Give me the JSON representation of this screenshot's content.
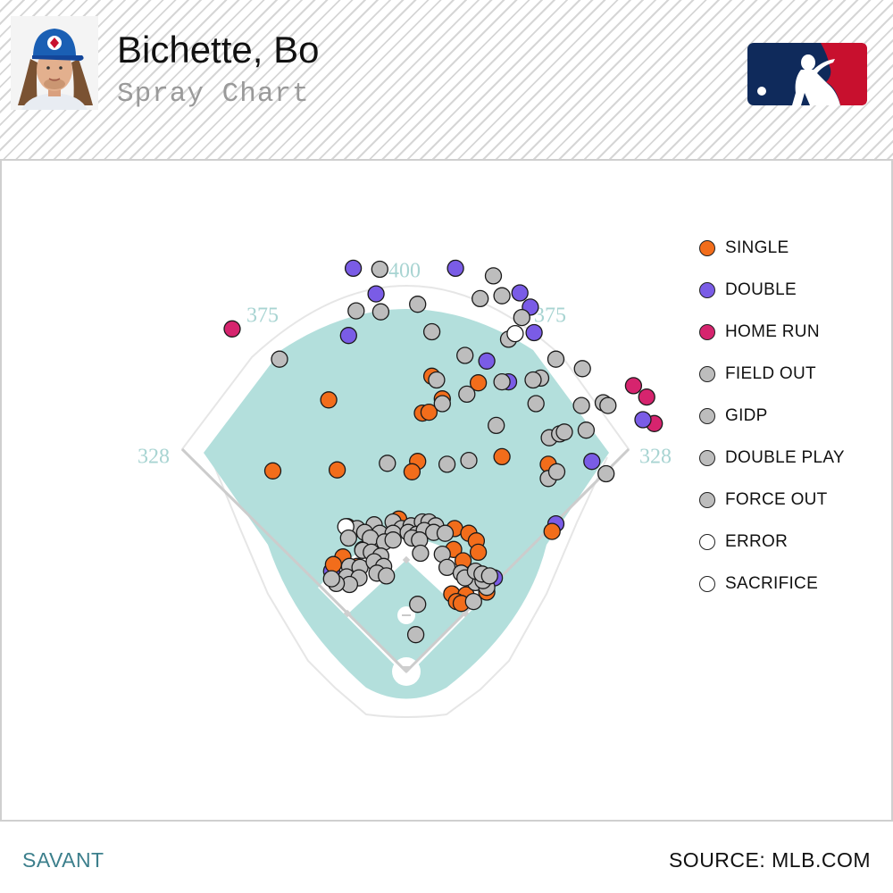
{
  "header": {
    "player_name": "Bichette, Bo",
    "subtitle": "Spray Chart"
  },
  "footer": {
    "brand": "SAVANT",
    "source": "SOURCE: MLB.COM"
  },
  "colors": {
    "field": "#b3dfdc",
    "single": "#f26d1b",
    "double": "#7a5ce6",
    "home_run": "#d6246e",
    "out": "#bdbdbd",
    "error": "#ffffff",
    "distance_label": "#a8d4d2",
    "mlb_blue": "#0f2a5b",
    "mlb_red": "#c8102e"
  },
  "chart_data": {
    "type": "scatter",
    "title": "Spray Chart",
    "field_distances": [
      {
        "label": "328",
        "side": "left-line"
      },
      {
        "label": "375",
        "side": "left-center"
      },
      {
        "label": "400",
        "side": "center"
      },
      {
        "label": "375",
        "side": "right-center"
      },
      {
        "label": "328",
        "side": "right-line"
      }
    ],
    "legend": [
      {
        "key": "single",
        "label": "SINGLE",
        "color": "#f26d1b"
      },
      {
        "key": "double",
        "label": "DOUBLE",
        "color": "#7a5ce6"
      },
      {
        "key": "home_run",
        "label": "HOME RUN",
        "color": "#d6246e"
      },
      {
        "key": "field_out",
        "label": "FIELD OUT",
        "color": "#bdbdbd"
      },
      {
        "key": "gidp",
        "label": "GIDP",
        "color": "#bdbdbd"
      },
      {
        "key": "double_play",
        "label": "DOUBLE PLAY",
        "color": "#bdbdbd"
      },
      {
        "key": "force_out",
        "label": "FORCE OUT",
        "color": "#bdbdbd"
      },
      {
        "key": "error",
        "label": "ERROR",
        "color": "#ffffff"
      },
      {
        "key": "sacrifice",
        "label": "SACRIFICE",
        "color": "#ffffff"
      }
    ],
    "coordinate_system": "hit coordinates: x = horizontal spray (home plate at 0, left field negative), y = feet toward center field",
    "hits": [
      {
        "x": -184,
        "y": 362,
        "type": "home_run"
      },
      {
        "x": 240,
        "y": 302,
        "type": "home_run"
      },
      {
        "x": 254,
        "y": 290,
        "type": "home_run"
      },
      {
        "x": 262,
        "y": 262,
        "type": "home_run"
      },
      {
        "x": -56,
        "y": 426,
        "type": "double"
      },
      {
        "x": 52,
        "y": 426,
        "type": "double"
      },
      {
        "x": -32,
        "y": 399,
        "type": "double"
      },
      {
        "x": 120,
        "y": 400,
        "type": "double"
      },
      {
        "x": 131,
        "y": 385,
        "type": "double"
      },
      {
        "x": -61,
        "y": 355,
        "type": "double"
      },
      {
        "x": 135,
        "y": 358,
        "type": "double"
      },
      {
        "x": 85,
        "y": 328,
        "type": "double"
      },
      {
        "x": 108,
        "y": 306,
        "type": "double"
      },
      {
        "x": 250,
        "y": 266,
        "type": "double"
      },
      {
        "x": 196,
        "y": 222,
        "type": "double"
      },
      {
        "x": 158,
        "y": 156,
        "type": "double"
      },
      {
        "x": -79,
        "y": 106,
        "type": "double"
      },
      {
        "x": 93,
        "y": 99,
        "type": "double"
      },
      {
        "x": 27,
        "y": 312,
        "type": "single"
      },
      {
        "x": 76,
        "y": 305,
        "type": "single"
      },
      {
        "x": -82,
        "y": 287,
        "type": "single"
      },
      {
        "x": 38,
        "y": 288,
        "type": "single"
      },
      {
        "x": 17,
        "y": 273,
        "type": "single"
      },
      {
        "x": 24,
        "y": 274,
        "type": "single"
      },
      {
        "x": -141,
        "y": 212,
        "type": "single"
      },
      {
        "x": -73,
        "y": 213,
        "type": "single"
      },
      {
        "x": 12,
        "y": 222,
        "type": "single"
      },
      {
        "x": 6,
        "y": 211,
        "type": "single"
      },
      {
        "x": 101,
        "y": 227,
        "type": "single"
      },
      {
        "x": 150,
        "y": 219,
        "type": "single"
      },
      {
        "x": 154,
        "y": 148,
        "type": "single"
      },
      {
        "x": -62,
        "y": 153,
        "type": "single"
      },
      {
        "x": -8,
        "y": 161,
        "type": "single"
      },
      {
        "x": 51,
        "y": 151,
        "type": "single"
      },
      {
        "x": 66,
        "y": 146,
        "type": "single"
      },
      {
        "x": 74,
        "y": 138,
        "type": "single"
      },
      {
        "x": 76,
        "y": 126,
        "type": "single"
      },
      {
        "x": -67,
        "y": 121,
        "type": "single"
      },
      {
        "x": -46,
        "y": 129,
        "type": "single"
      },
      {
        "x": -52,
        "y": 111,
        "type": "single"
      },
      {
        "x": -77,
        "y": 113,
        "type": "single"
      },
      {
        "x": 50,
        "y": 129,
        "type": "single"
      },
      {
        "x": 60,
        "y": 117,
        "type": "single"
      },
      {
        "x": 48,
        "y": 82,
        "type": "single"
      },
      {
        "x": 63,
        "y": 81,
        "type": "single"
      },
      {
        "x": 85,
        "y": 84,
        "type": "single"
      },
      {
        "x": 53,
        "y": 74,
        "type": "single"
      },
      {
        "x": 58,
        "y": 72,
        "type": "single"
      },
      {
        "x": -28,
        "y": 425,
        "type": "field_out"
      },
      {
        "x": 92,
        "y": 418,
        "type": "field_out"
      },
      {
        "x": 101,
        "y": 397,
        "type": "field_out"
      },
      {
        "x": 78,
        "y": 394,
        "type": "field_out"
      },
      {
        "x": 12,
        "y": 388,
        "type": "field_out"
      },
      {
        "x": -53,
        "y": 381,
        "type": "field_out"
      },
      {
        "x": -27,
        "y": 380,
        "type": "field_out"
      },
      {
        "x": 122,
        "y": 374,
        "type": "field_out"
      },
      {
        "x": 27,
        "y": 359,
        "type": "field_out"
      },
      {
        "x": 108,
        "y": 351,
        "type": "field_out"
      },
      {
        "x": -134,
        "y": 330,
        "type": "field_out"
      },
      {
        "x": 62,
        "y": 334,
        "type": "field_out"
      },
      {
        "x": 158,
        "y": 330,
        "type": "field_out"
      },
      {
        "x": 186,
        "y": 320,
        "type": "field_out"
      },
      {
        "x": 32,
        "y": 308,
        "type": "field_out"
      },
      {
        "x": 142,
        "y": 310,
        "type": "field_out"
      },
      {
        "x": 134,
        "y": 308,
        "type": "field_out"
      },
      {
        "x": 101,
        "y": 306,
        "type": "field_out"
      },
      {
        "x": 64,
        "y": 293,
        "type": "field_out"
      },
      {
        "x": 38,
        "y": 283,
        "type": "field_out"
      },
      {
        "x": 137,
        "y": 283,
        "type": "field_out"
      },
      {
        "x": 185,
        "y": 281,
        "type": "field_out"
      },
      {
        "x": 208,
        "y": 284,
        "type": "field_out"
      },
      {
        "x": 213,
        "y": 281,
        "type": "field_out"
      },
      {
        "x": 95,
        "y": 260,
        "type": "field_out"
      },
      {
        "x": 151,
        "y": 247,
        "type": "field_out"
      },
      {
        "x": 162,
        "y": 251,
        "type": "field_out"
      },
      {
        "x": 167,
        "y": 253,
        "type": "field_out"
      },
      {
        "x": 190,
        "y": 255,
        "type": "field_out"
      },
      {
        "x": -20,
        "y": 220,
        "type": "field_out"
      },
      {
        "x": 43,
        "y": 219,
        "type": "field_out"
      },
      {
        "x": 66,
        "y": 223,
        "type": "field_out"
      },
      {
        "x": 150,
        "y": 204,
        "type": "field_out"
      },
      {
        "x": 159,
        "y": 211,
        "type": "field_out"
      },
      {
        "x": 211,
        "y": 209,
        "type": "field_out"
      },
      {
        "x": -52,
        "y": 151,
        "type": "field_out"
      },
      {
        "x": -34,
        "y": 155,
        "type": "field_out"
      },
      {
        "x": -14,
        "y": 158,
        "type": "field_out"
      },
      {
        "x": -5,
        "y": 151,
        "type": "field_out"
      },
      {
        "x": 5,
        "y": 154,
        "type": "field_out"
      },
      {
        "x": 17,
        "y": 158,
        "type": "field_out"
      },
      {
        "x": 24,
        "y": 158,
        "type": "field_out"
      },
      {
        "x": 31,
        "y": 154,
        "type": "field_out"
      },
      {
        "x": -44,
        "y": 147,
        "type": "field_out"
      },
      {
        "x": -28,
        "y": 146,
        "type": "field_out"
      },
      {
        "x": -14,
        "y": 146,
        "type": "field_out"
      },
      {
        "x": 2,
        "y": 147,
        "type": "field_out"
      },
      {
        "x": 11,
        "y": 145,
        "type": "field_out"
      },
      {
        "x": 19,
        "y": 149,
        "type": "field_out"
      },
      {
        "x": 29,
        "y": 147,
        "type": "field_out"
      },
      {
        "x": 41,
        "y": 146,
        "type": "field_out"
      },
      {
        "x": -38,
        "y": 141,
        "type": "field_out"
      },
      {
        "x": -23,
        "y": 137,
        "type": "field_out"
      },
      {
        "x": -14,
        "y": 139,
        "type": "field_out"
      },
      {
        "x": 6,
        "y": 141,
        "type": "field_out"
      },
      {
        "x": 14,
        "y": 139,
        "type": "field_out"
      },
      {
        "x": -46,
        "y": 128,
        "type": "field_out"
      },
      {
        "x": -37,
        "y": 126,
        "type": "field_out"
      },
      {
        "x": -27,
        "y": 122,
        "type": "field_out"
      },
      {
        "x": 15,
        "y": 125,
        "type": "field_out"
      },
      {
        "x": 38,
        "y": 124,
        "type": "field_out"
      },
      {
        "x": -60,
        "y": 111,
        "type": "field_out"
      },
      {
        "x": -49,
        "y": 110,
        "type": "field_out"
      },
      {
        "x": -34,
        "y": 116,
        "type": "field_out"
      },
      {
        "x": -24,
        "y": 111,
        "type": "field_out"
      },
      {
        "x": 43,
        "y": 110,
        "type": "field_out"
      },
      {
        "x": -63,
        "y": 100,
        "type": "field_out"
      },
      {
        "x": -50,
        "y": 99,
        "type": "field_out"
      },
      {
        "x": -31,
        "y": 104,
        "type": "field_out"
      },
      {
        "x": -21,
        "y": 101,
        "type": "field_out"
      },
      {
        "x": 58,
        "y": 104,
        "type": "field_out"
      },
      {
        "x": 73,
        "y": 94,
        "type": "field_out"
      },
      {
        "x": -60,
        "y": 92,
        "type": "field_out"
      },
      {
        "x": -74,
        "y": 93,
        "type": "field_out"
      },
      {
        "x": -79,
        "y": 98,
        "type": "field_out"
      },
      {
        "x": 62,
        "y": 99,
        "type": "field_out"
      },
      {
        "x": 85,
        "y": 89,
        "type": "field_out"
      },
      {
        "x": 81,
        "y": 96,
        "type": "field_out"
      },
      {
        "x": 73,
        "y": 106,
        "type": "field_out"
      },
      {
        "x": 80,
        "y": 103,
        "type": "field_out"
      },
      {
        "x": 88,
        "y": 101,
        "type": "field_out"
      },
      {
        "x": 12,
        "y": 71,
        "type": "field_out"
      },
      {
        "x": 71,
        "y": 74,
        "type": "field_out"
      },
      {
        "x": 10,
        "y": 39,
        "type": "field_out"
      },
      {
        "x": -64,
        "y": 153,
        "type": "error"
      },
      {
        "x": 115,
        "y": 357,
        "type": "error"
      },
      {
        "x": -61,
        "y": 141,
        "type": "field_out"
      }
    ]
  }
}
